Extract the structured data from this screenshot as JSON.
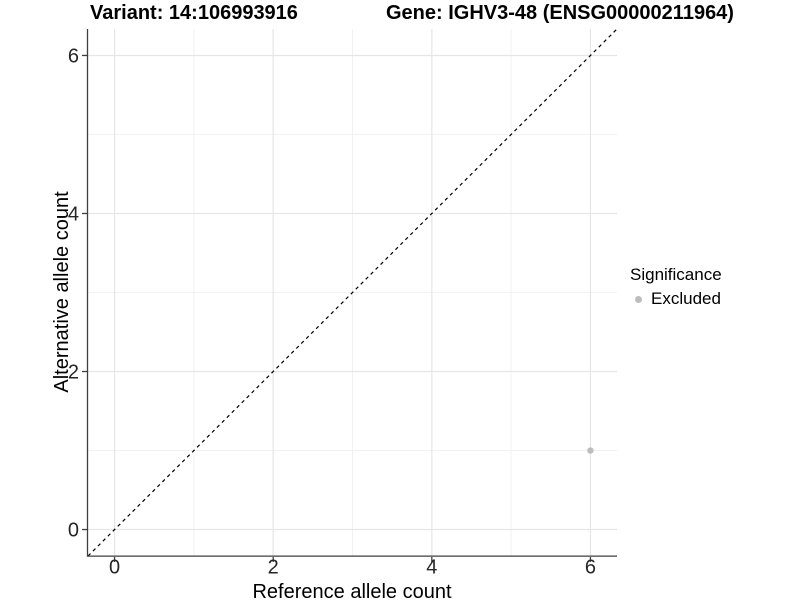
{
  "page": {
    "background": "#ffffff"
  },
  "chart_data": {
    "type": "scatter",
    "title_left": "Variant: 14:106993916",
    "title_right": "Gene: IGHV3-48 (ENSG00000211964)",
    "xlabel": "Reference allele count",
    "ylabel": "Alternative allele count",
    "xlim": [
      -0.335,
      6.335
    ],
    "ylim": [
      -0.335,
      6.335
    ],
    "x_ticks": [
      0,
      2,
      4,
      6
    ],
    "y_ticks": [
      0,
      2,
      4,
      6
    ],
    "x_minor": [
      1,
      3,
      5
    ],
    "y_minor": [
      1,
      3,
      5
    ],
    "grid": true,
    "series": [
      {
        "name": "Excluded",
        "color": "#bdbdbd",
        "point_radius": 3.2,
        "points": [
          [
            6,
            1
          ]
        ]
      }
    ],
    "reference_line": {
      "kind": "identity",
      "dashed": true,
      "color": "#000000"
    },
    "legend": {
      "title": "Significance",
      "position": "right",
      "items": [
        {
          "label": "Excluded",
          "color": "#bdbdbd"
        }
      ]
    },
    "colors": {
      "axis_line": "#3f3f3f",
      "grid_major": "#e6e6e6",
      "grid_minor": "#f2f2f2",
      "tick_text": "#262626"
    }
  }
}
